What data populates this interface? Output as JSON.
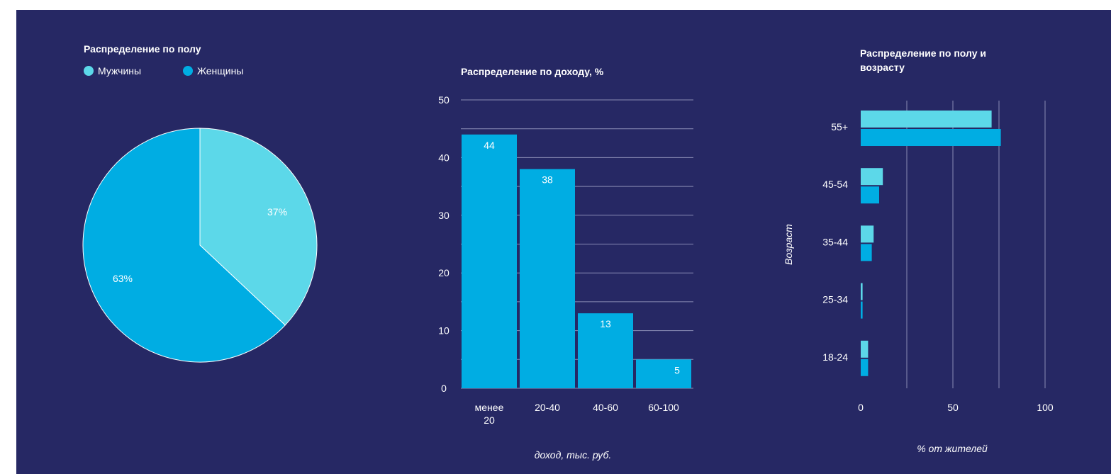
{
  "chart_data": [
    {
      "type": "pie",
      "title": "Распределение по полу",
      "legend_position": "top-left",
      "slices": [
        {
          "name": "Мужчины",
          "value": 37,
          "label": "37%",
          "color": "#5cd8e9"
        },
        {
          "name": "Женщины",
          "value": 63,
          "label": "63%",
          "color": "#00ade3"
        }
      ]
    },
    {
      "type": "bar",
      "title": "Распределение по доходу, %",
      "xlabel": "доход, тыс. руб.",
      "ylabel": "",
      "categories": [
        [
          "менее",
          "20"
        ],
        [
          "20-40"
        ],
        [
          "40-60"
        ],
        [
          "60-100"
        ]
      ],
      "values": [
        44,
        38,
        13,
        5
      ],
      "value_labels": [
        "44",
        "38",
        "13",
        "5"
      ],
      "ylim": [
        0,
        50
      ],
      "yticks": [
        "0",
        "10",
        "20",
        "30",
        "40",
        "50"
      ],
      "grid": true,
      "color": "#00ade3"
    },
    {
      "type": "bar",
      "orientation": "horizontal",
      "title": [
        "Распределение по полу и",
        "возрасту"
      ],
      "xlabel": "% от жителей",
      "ylabel": "Возраст",
      "categories": [
        "55+",
        "45-54",
        "35-44",
        "25-34",
        "18-24"
      ],
      "xlim": [
        0,
        100
      ],
      "xticks": [
        "0",
        "50",
        "100"
      ],
      "grid": true,
      "series": [
        {
          "color": "#5cd8e9",
          "values": [
            71,
            12,
            7,
            1,
            4
          ]
        },
        {
          "color": "#00ade3",
          "values": [
            76,
            10,
            6,
            1,
            4
          ]
        }
      ]
    }
  ]
}
